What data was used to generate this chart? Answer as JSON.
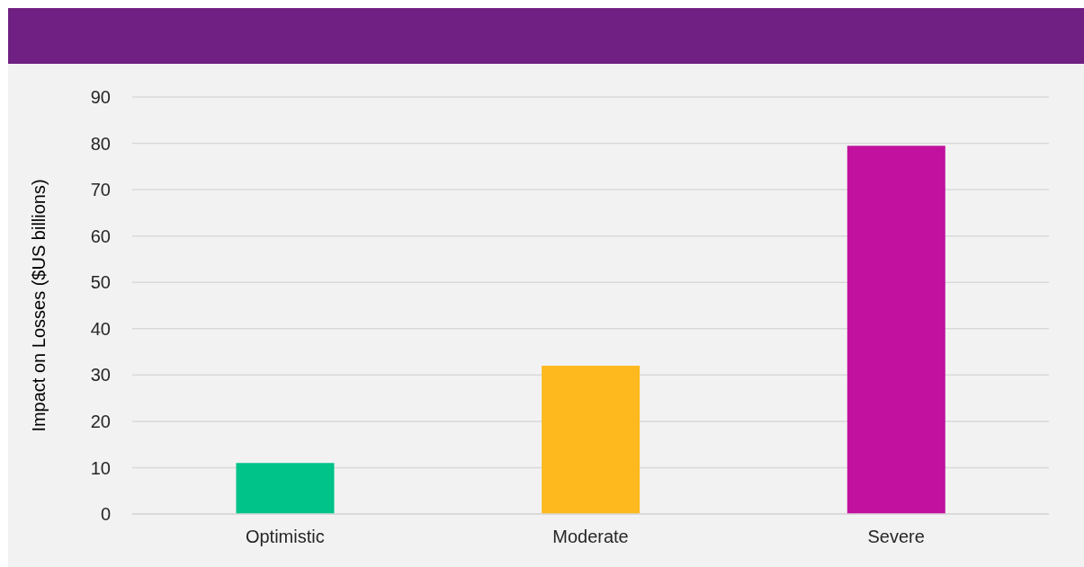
{
  "chart_data": {
    "type": "bar",
    "ylabel": "Impact on Losses ($US billions)",
    "categories": [
      "Optimistic",
      "Moderate",
      "Severe"
    ],
    "values": [
      11,
      32,
      79.5
    ],
    "colors": [
      "#00c389",
      "#fdb91e",
      "#c1119e"
    ],
    "ylim": [
      0,
      90
    ],
    "yticks": [
      0,
      10,
      20,
      30,
      40,
      50,
      60,
      70,
      80,
      90
    ],
    "grid": "y"
  }
}
